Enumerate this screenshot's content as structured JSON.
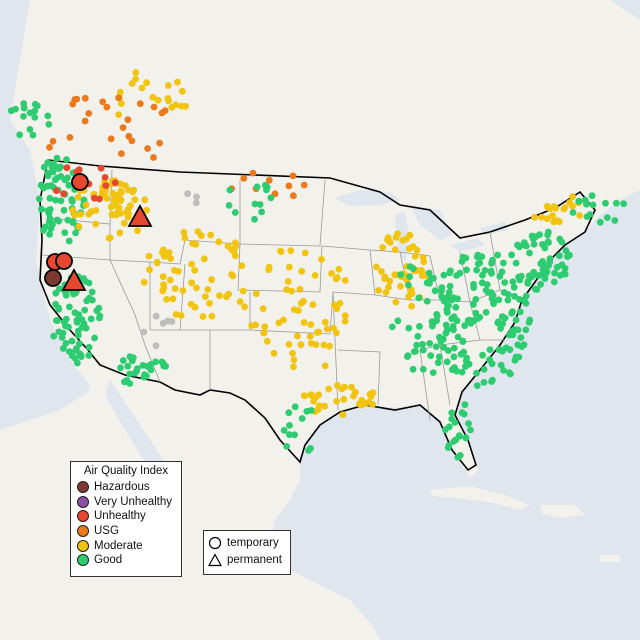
{
  "legend": {
    "title": "Air Quality Index",
    "categories": [
      {
        "label": "Hazardous",
        "color": "#7e3a2e"
      },
      {
        "label": "Very Unhealthy",
        "color": "#8a4fa6"
      },
      {
        "label": "Unhealthy",
        "color": "#e8472f"
      },
      {
        "label": "USG",
        "color": "#ec7a1c"
      },
      {
        "label": "Moderate",
        "color": "#f1c40f"
      },
      {
        "label": "Good",
        "color": "#2ecc71"
      }
    ],
    "types": [
      {
        "label": "temporary",
        "shape": "circle"
      },
      {
        "label": "permanent",
        "shape": "triangle"
      }
    ]
  },
  "colors": {
    "water": "#dfe6ee",
    "land": "#f2f1ec",
    "no_data": "#bdbdbd"
  }
}
